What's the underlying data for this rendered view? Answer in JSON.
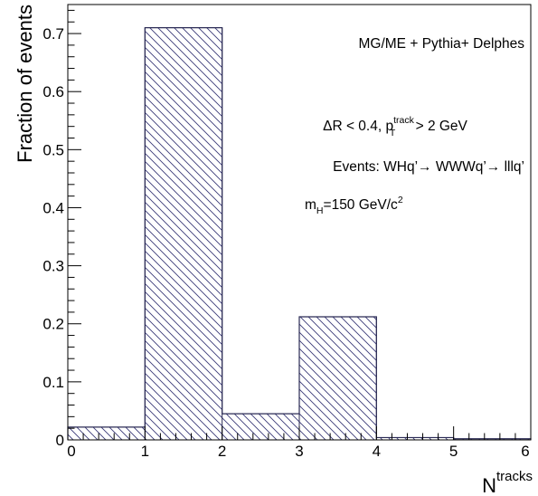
{
  "chart_data": {
    "type": "bar",
    "bin_edges": [
      0,
      1,
      2,
      3,
      4,
      5,
      6
    ],
    "values": [
      0.022,
      0.71,
      0.045,
      0.212,
      0.004,
      0.002
    ],
    "xlim": [
      0,
      6
    ],
    "ylim": [
      0,
      0.75
    ],
    "xticks": [
      "0",
      "1",
      "2",
      "3",
      "4",
      "5",
      "6"
    ],
    "yticks": [
      "0",
      "0.1",
      "0.2",
      "0.3",
      "0.4",
      "0.5",
      "0.6",
      "0.7"
    ],
    "ylabel": "Fraction of events",
    "xlabel": {
      "main": "N",
      "sup": "tracks"
    },
    "fill": "hatched",
    "colors": {
      "line": "#2b2b55",
      "hatch": "#3a3a78"
    },
    "annotations": {
      "generator": "MG/ME + Pythia+ Delphes",
      "cut": {
        "a": "ΔR < 0.4, p",
        "sup": "track",
        "sub": "T",
        "b": " > 2 GeV"
      },
      "events": {
        "a": "Events: WHq’",
        "arrow1": "→",
        "b": " WWWq’",
        "arrow2": "→",
        "c": " lllq’"
      },
      "mass": {
        "a": "m",
        "sub": "H",
        "b": "=150 GeV/c",
        "sup": "2"
      }
    }
  }
}
